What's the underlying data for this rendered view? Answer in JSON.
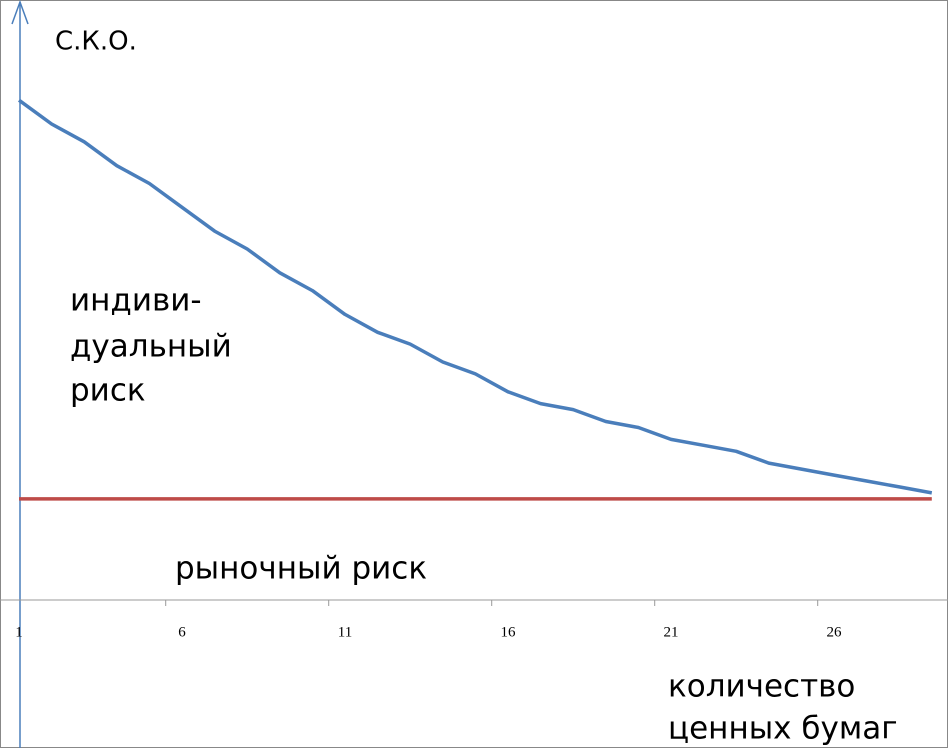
{
  "chart_data": {
    "type": "line",
    "y_label": "С.К.О.",
    "x_label": [
      "количество",
      "ценных бумаг"
    ],
    "annotations": [
      [
        "индиви-",
        "дуальный",
        "риск"
      ],
      [
        "рыночный риск"
      ]
    ],
    "categories": [
      1,
      null,
      null,
      null,
      null,
      6,
      null,
      null,
      null,
      null,
      11,
      null,
      null,
      null,
      null,
      16,
      null,
      null,
      null,
      null,
      21,
      null,
      null,
      null,
      null,
      26,
      null,
      null,
      null
    ],
    "series": [
      {
        "color": "#4a7ebb",
        "values": [
          84,
          80,
          77,
          73,
          70,
          66,
          62,
          59,
          55,
          52,
          48,
          45,
          43,
          40,
          38,
          35,
          33,
          32,
          30,
          29,
          27,
          26,
          25,
          23,
          22,
          21,
          20,
          19,
          18
        ]
      },
      {
        "color": "#be4b48",
        "values": [
          17,
          17,
          17,
          17,
          17,
          17,
          17,
          17,
          17,
          17,
          17,
          17,
          17,
          17,
          17,
          17,
          17,
          17,
          17,
          17,
          17,
          17,
          17,
          17,
          17,
          17,
          17,
          17,
          17
        ]
      }
    ],
    "ylim": [
      0,
      100
    ]
  }
}
